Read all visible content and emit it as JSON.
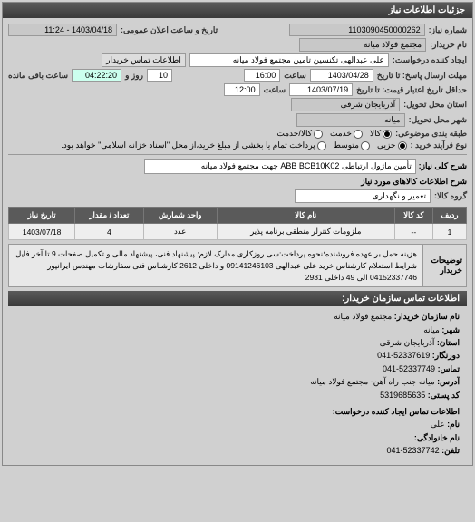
{
  "panel1_title": "جزئیات اطلاعات نیاز",
  "req_no_label": "شماره نیاز:",
  "req_no": "1103090450000262",
  "pub_date_label": "تاریخ و ساعت اعلان عمومی:",
  "pub_date": "1403/04/18 - 11:24",
  "buyer_label": "نام خریدار:",
  "buyer": "مجتمع فولاد میانه",
  "buyer_contact_btn": "اطلاعات تماس خریدار",
  "requester_label": "ایجاد کننده درخواست:",
  "requester": "علی عبدالهی تکنسین تامین مجتمع فولاد میانه",
  "deadline_label": "مهلت ارسال پاسخ: تا تاریخ",
  "deadline_date": "1403/04/28",
  "deadline_time_label": "ساعت",
  "deadline_time": "16:00",
  "remain_days": "10",
  "remain_days_label": "روز و",
  "remain_time": "04:22:20",
  "remain_suffix": "ساعت باقی مانده",
  "valid_label": "حداقل تاریخ اعتبار قیمت: تا تاریخ",
  "valid_date": "1403/07/19",
  "valid_time_label": "ساعت",
  "valid_time": "12:00",
  "province_label": "استان محل تحویل:",
  "province": "آذربایجان شرقی",
  "city_label": "شهر محل تحویل:",
  "city": "میانه",
  "pkg_label": "طبقه بندی موضوعی:",
  "pkg_opts": [
    "کالا",
    "خدمت",
    "کالا/خدمت"
  ],
  "pkg_selected": 0,
  "process_label": "نوع فرآیند خرید :",
  "process_opts": [
    "جزیی",
    "متوسط",
    "پرداخت تمام یا بخشی از مبلغ خرید،از محل \"اسناد خزانه اسلامی\" خواهد بود."
  ],
  "process_selected": 0,
  "desc_label": "شرح کلی نیاز:",
  "desc_value": "تأمین ماژول ارتباطی ABB BCB10K02 جهت مجتمع فولاد میانه",
  "items_header": "شرح اطلاعات کالاهای مورد نیاز",
  "group_label": "گروه کالا:",
  "group_value": "تعمیر و نگهداری",
  "table": {
    "cols": [
      "ردیف",
      "کد کالا",
      "نام کالا",
      "واحد شمارش",
      "تعداد / مقدار",
      "تاریخ نیاز"
    ],
    "rows": [
      [
        "1",
        "--",
        "ملزومات کنترلر منطقی برنامه پذیر",
        "عدد",
        "4",
        "1403/07/18"
      ]
    ]
  },
  "notes_label": "توضیحات خریدار",
  "notes_text": "هزینه حمل بر عهده فروشنده؛نحوه پرداخت:سی روزکاری مدارک لازم: پیشنهاد فنی، پیشنهاد مالی و تکمیل صفحات 9 تا آخر فایل شرایط استعلام کارشناس خرید علی عبدالهی 09141246103 و داخلی 2612 کارشناس فنی سفارشات مهندس ایرانپور 04152337746 الی 49 داخلی 2931",
  "contact_header": "اطلاعات تماس سازمان خریدار:",
  "contact": {
    "org_label": "نام سازمان خریدار:",
    "org": "مجتمع فولاد میانه",
    "city_label": "شهر:",
    "city": "میانه",
    "province_label": "استان:",
    "province": "آذربایجان شرقی",
    "tel_label": "دورنگار:",
    "tel": "52337619-041",
    "fax_label": "تماس:",
    "fax": "52337749-041",
    "addr_label": "آدرس:",
    "addr": "میانه جنب راه آهن- مجتمع فولاد میانه",
    "post_label": "کد پستی:",
    "post": "5319685635",
    "req_contact_header": "اطلاعات تماس ایجاد کننده درخواست:",
    "name_label": "نام:",
    "name": "علی",
    "lname_label": "نام خانوادگی:",
    "lname": "",
    "tel2_label": "تلفن:",
    "tel2": "52337742-041"
  }
}
